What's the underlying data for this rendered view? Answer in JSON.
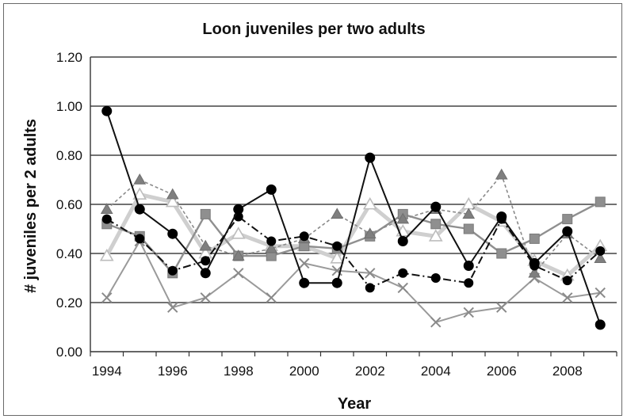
{
  "chart_data": {
    "type": "line",
    "title": "Loon juveniles per two adults",
    "xlabel": "Year",
    "ylabel": "# juveniles per 2 adults",
    "ylim": [
      0,
      1.2
    ],
    "xlim": [
      1994,
      2009
    ],
    "yticks": [
      "0.00",
      "0.20",
      "0.40",
      "0.60",
      "0.80",
      "1.00",
      "1.20"
    ],
    "xticks": [
      "1994",
      "1996",
      "1998",
      "2000",
      "2002",
      "2004",
      "2006",
      "2008"
    ],
    "grid": true,
    "legend": "none",
    "x": [
      1994,
      1995,
      1996,
      1997,
      1998,
      1999,
      2000,
      2001,
      2002,
      2003,
      2004,
      2005,
      2006,
      2007,
      2008,
      2009
    ],
    "series": [
      {
        "style": "black-solid-circle",
        "color": "#111111",
        "values": [
          0.98,
          0.58,
          0.48,
          0.32,
          0.58,
          0.66,
          0.28,
          0.28,
          0.79,
          0.45,
          0.59,
          0.35,
          0.55,
          0.36,
          0.49,
          0.11
        ]
      },
      {
        "style": "black-dashdot-circle",
        "color": "#111111",
        "values": [
          0.54,
          0.46,
          0.33,
          0.37,
          0.55,
          0.45,
          0.47,
          0.43,
          0.26,
          0.32,
          0.3,
          0.28,
          0.54,
          0.35,
          0.29,
          0.41
        ]
      },
      {
        "style": "gray-dashed-triangle",
        "color": "#8a8a8a",
        "values": [
          0.58,
          0.7,
          0.64,
          0.43,
          0.39,
          0.42,
          0.46,
          0.56,
          0.48,
          0.54,
          0.58,
          0.56,
          0.72,
          0.32,
          0.48,
          0.38
        ]
      },
      {
        "style": "gray-square",
        "color": "#8f8f8f",
        "values": [
          0.52,
          0.47,
          0.32,
          0.56,
          0.39,
          0.39,
          0.43,
          0.42,
          0.47,
          0.56,
          0.52,
          0.5,
          0.4,
          0.46,
          0.54,
          0.61
        ]
      },
      {
        "style": "lightgray-thick-open-triangle",
        "color": "#cccccc",
        "values": [
          0.39,
          0.64,
          0.61,
          0.4,
          0.48,
          0.43,
          0.43,
          0.38,
          0.6,
          0.49,
          0.47,
          0.6,
          0.53,
          0.37,
          0.31,
          0.43
        ]
      },
      {
        "style": "gray-x",
        "color": "#9a9a9a",
        "values": [
          0.22,
          0.45,
          0.18,
          0.22,
          0.32,
          0.22,
          0.36,
          0.33,
          0.32,
          0.26,
          0.12,
          0.16,
          0.18,
          0.3,
          0.22,
          0.24
        ]
      }
    ]
  }
}
